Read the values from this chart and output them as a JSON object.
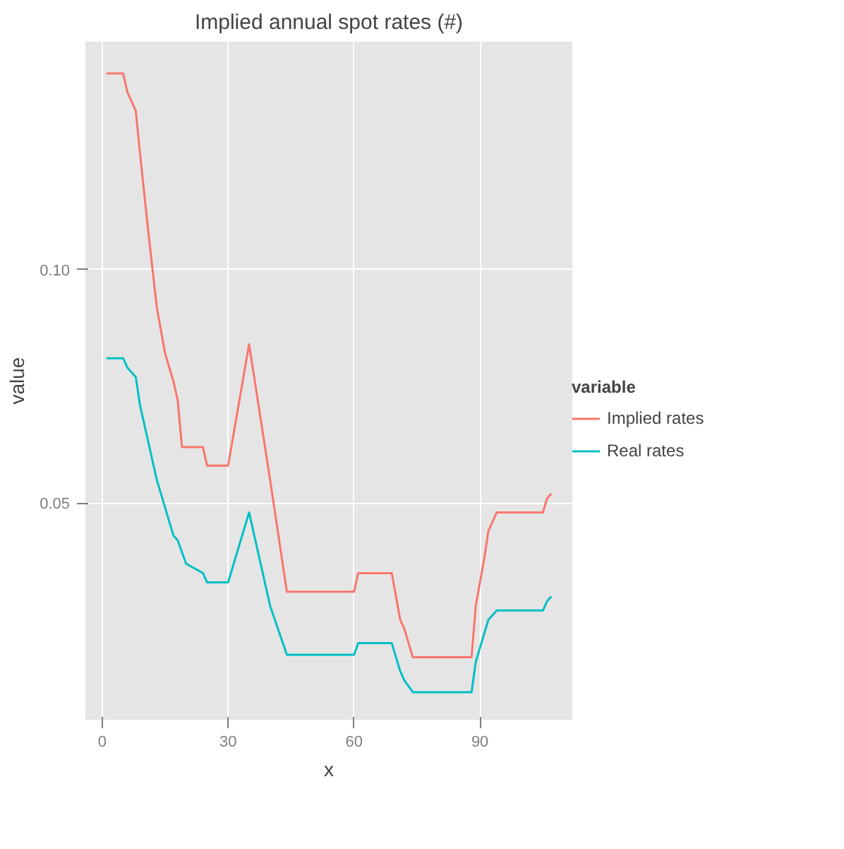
{
  "chart_data": {
    "type": "line",
    "title": "Implied annual spot rates (#)",
    "xlabel": "x",
    "ylabel": "value",
    "legend_title": "variable",
    "xlim": [
      -4,
      112
    ],
    "ylim": [
      0.0036,
      0.1488
    ],
    "xticks": [
      0,
      30,
      60,
      90
    ],
    "yticks": [
      {
        "value": 0.05,
        "label": "0.05"
      },
      {
        "value": 0.1,
        "label": "0.10"
      }
    ],
    "grid": true,
    "legend": "right",
    "line_style": "solid",
    "marker": "none",
    "series": [
      {
        "name": "Implied rates",
        "color": "#f8766d",
        "x": [
          1,
          5,
          6,
          8,
          9,
          11,
          13,
          15,
          17,
          18,
          19,
          24,
          25,
          30,
          35,
          40,
          44,
          60,
          61,
          69,
          71,
          72,
          74,
          88,
          89,
          91,
          92,
          94,
          105,
          106,
          107
        ],
        "values": [
          0.142,
          0.142,
          0.138,
          0.134,
          0.125,
          0.108,
          0.092,
          0.082,
          0.076,
          0.072,
          0.062,
          0.062,
          0.058,
          0.058,
          0.084,
          0.055,
          0.031,
          0.031,
          0.035,
          0.035,
          0.025,
          0.023,
          0.017,
          0.017,
          0.028,
          0.038,
          0.044,
          0.048,
          0.048,
          0.051,
          0.052
        ]
      },
      {
        "name": "Real rates",
        "color": "#00bfc4",
        "x": [
          1,
          5,
          6,
          8,
          9,
          11,
          13,
          15,
          17,
          18,
          20,
          22,
          24,
          25,
          30,
          35,
          40,
          44,
          60,
          61,
          69,
          71,
          72,
          74,
          88,
          89,
          91,
          92,
          94,
          105,
          106,
          107
        ],
        "values": [
          0.081,
          0.081,
          0.079,
          0.077,
          0.071,
          0.063,
          0.055,
          0.049,
          0.043,
          0.042,
          0.037,
          0.036,
          0.035,
          0.033,
          0.033,
          0.048,
          0.028,
          0.0175,
          0.0175,
          0.02,
          0.02,
          0.014,
          0.012,
          0.0095,
          0.0095,
          0.016,
          0.022,
          0.025,
          0.027,
          0.027,
          0.029,
          0.03
        ]
      }
    ]
  }
}
